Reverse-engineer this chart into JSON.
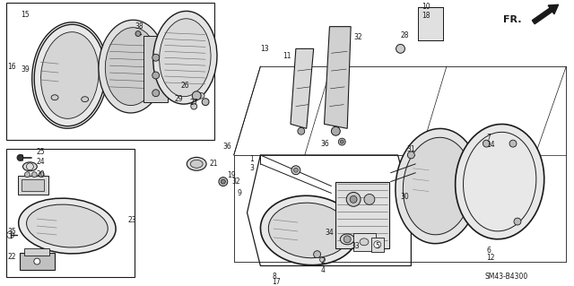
{
  "bg_color": "#ffffff",
  "line_color": "#1a1a1a",
  "diagram_code": "SM43-B4300",
  "fr_label": "FR.",
  "fig_w": 6.4,
  "fig_h": 3.19,
  "dpi": 100
}
